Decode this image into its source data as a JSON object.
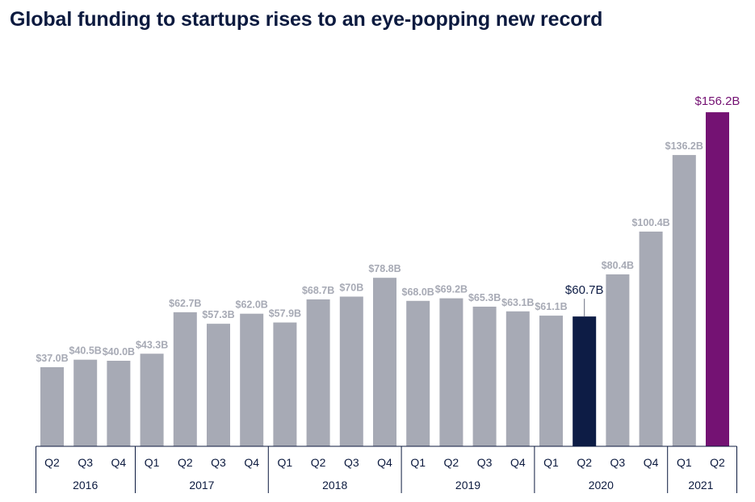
{
  "title": "Global funding to startups rises to an eye-popping new record",
  "colors": {
    "default_bar": "#a7aab5",
    "highlight_bar": "#0d1c45",
    "record_bar": "#741273",
    "default_label": "#a7aab5",
    "highlight_label": "#0d1c45",
    "record_label": "#741273",
    "axis": "#0c1a3f",
    "tick_text": "#0c1a3f"
  },
  "chart_data": {
    "type": "bar",
    "title": "Global funding to startups rises to an eye-popping new record",
    "xlabel": "",
    "ylabel": "",
    "ylim": [
      0,
      160
    ],
    "unit": "B",
    "grid": false,
    "legend": "none",
    "categories": [
      "Q2",
      "Q3",
      "Q4",
      "Q1",
      "Q2",
      "Q3",
      "Q4",
      "Q1",
      "Q2",
      "Q3",
      "Q4",
      "Q1",
      "Q2",
      "Q3",
      "Q4",
      "Q1",
      "Q2",
      "Q3",
      "Q4",
      "Q1",
      "Q2"
    ],
    "values": [
      37.0,
      40.5,
      40.0,
      43.3,
      62.7,
      57.3,
      62.0,
      57.9,
      68.7,
      70,
      78.8,
      68.0,
      69.2,
      65.3,
      63.1,
      61.1,
      60.7,
      80.4,
      100.4,
      136.2,
      156.2
    ],
    "labels": [
      "$37.0B",
      "$40.5B",
      "$40.0B",
      "$43.3B",
      "$62.7B",
      "$57.3B",
      "$62.0B",
      "$57.9B",
      "$68.7B",
      "$70B",
      "$78.8B",
      "$68.0B",
      "$69.2B",
      "$65.3B",
      "$63.1B",
      "$61.1B",
      "$60.7B",
      "$80.4B",
      "$100.4B",
      "$136.2B",
      "$156.2B"
    ],
    "bar_roles": [
      "default",
      "default",
      "default",
      "default",
      "default",
      "default",
      "default",
      "default",
      "default",
      "default",
      "default",
      "default",
      "default",
      "default",
      "default",
      "default",
      "highlight",
      "default",
      "default",
      "default",
      "record"
    ],
    "year_groups": [
      {
        "year": "2016",
        "count": 3
      },
      {
        "year": "2017",
        "count": 4
      },
      {
        "year": "2018",
        "count": 4
      },
      {
        "year": "2019",
        "count": 4
      },
      {
        "year": "2020",
        "count": 4
      },
      {
        "year": "2021",
        "count": 2
      }
    ]
  }
}
